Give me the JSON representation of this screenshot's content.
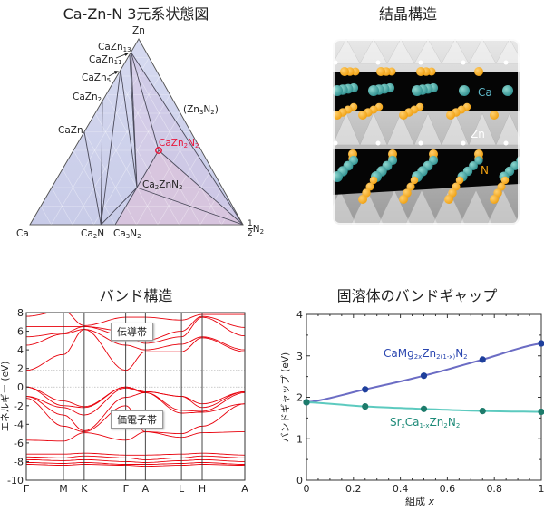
{
  "panels": {
    "phase_title": "Ca-Zn-N 3元系状態図",
    "crystal_title": "結晶構造",
    "band_title": "バンド構造",
    "gap_title": "固溶体のバンドギャップ"
  },
  "phase_diagram": {
    "corners": {
      "Ca": "Ca",
      "Zn": "Zn",
      "N": "N2",
      "N_prefix_num": "1",
      "N_prefix_den": "2"
    },
    "compounds": [
      {
        "id": "CaZn13",
        "parts": [
          [
            "CaZn",
            ""
          ],
          [
            "",
            "13"
          ]
        ],
        "comp": [
          1,
          13,
          0
        ],
        "highlight": false
      },
      {
        "id": "CaZn11",
        "parts": [
          [
            "CaZn",
            ""
          ],
          [
            "",
            "11"
          ]
        ],
        "comp": [
          1,
          11,
          0
        ],
        "highlight": false
      },
      {
        "id": "CaZn5",
        "parts": [
          [
            "CaZn",
            ""
          ],
          [
            "",
            "5"
          ]
        ],
        "comp": [
          1,
          5,
          0
        ],
        "highlight": false
      },
      {
        "id": "CaZn2",
        "parts": [
          [
            "CaZn",
            ""
          ],
          [
            "",
            "2"
          ]
        ],
        "comp": [
          1,
          2,
          0
        ],
        "highlight": false
      },
      {
        "id": "CaZn",
        "parts": [
          [
            "CaZn",
            ""
          ]
        ],
        "comp": [
          1,
          1,
          0
        ],
        "highlight": false
      },
      {
        "id": "Ca2N",
        "parts": [
          [
            "Ca",
            ""
          ],
          [
            "",
            "2"
          ],
          [
            "N",
            ""
          ]
        ],
        "comp": [
          2,
          0,
          1
        ],
        "highlight": false
      },
      {
        "id": "Ca3N2",
        "parts": [
          [
            "Ca",
            ""
          ],
          [
            "",
            "3"
          ],
          [
            "N",
            ""
          ],
          [
            "",
            "2"
          ]
        ],
        "comp": [
          3,
          0,
          2
        ],
        "highlight": false
      },
      {
        "id": "Ca2ZnN2",
        "parts": [
          [
            "Ca",
            ""
          ],
          [
            "",
            "2"
          ],
          [
            "ZnN",
            ""
          ],
          [
            "",
            "2"
          ]
        ],
        "comp": [
          2,
          1,
          2
        ],
        "highlight": false
      },
      {
        "id": "CaZn2N2",
        "parts": [
          [
            "CaZn",
            ""
          ],
          [
            "",
            "2"
          ],
          [
            "N",
            ""
          ],
          [
            "",
            "2"
          ]
        ],
        "comp": [
          1,
          2,
          2
        ],
        "highlight": true
      },
      {
        "id": "Zn3N2",
        "parts": [
          [
            "(Zn",
            ""
          ],
          [
            "",
            "3"
          ],
          [
            "N",
            ""
          ],
          [
            "",
            "2"
          ],
          [
            ")",
            ""
          ]
        ],
        "comp": [
          0,
          3,
          2
        ],
        "highlight": false
      }
    ],
    "tie_lines": [
      [
        "CaZn",
        "Ca2N"
      ],
      [
        "CaZn2",
        "Ca2N"
      ],
      [
        "CaZn5",
        "Ca2N"
      ],
      [
        "CaZn5",
        "Ca2ZnN2"
      ],
      [
        "CaZn11",
        "Ca2ZnN2"
      ],
      [
        "CaZn13",
        "Ca2ZnN2"
      ],
      [
        "CaZn13",
        "CaZn2N2"
      ],
      [
        "CaZn13",
        "N"
      ],
      [
        "Ca2N",
        "Ca2ZnN2"
      ],
      [
        "Ca3N2",
        "Ca2ZnN2"
      ],
      [
        "Ca2ZnN2",
        "CaZn2N2"
      ],
      [
        "Ca2ZnN2",
        "N"
      ],
      [
        "CaZn2N2",
        "N"
      ]
    ],
    "colors": {
      "fill": "#c8cbe8",
      "pink": "#d9c3dc",
      "highlight": "#e8173c"
    }
  },
  "crystal": {
    "labels": {
      "ca": "Ca",
      "zn": "Zn",
      "n": "N"
    },
    "colors": {
      "ca": "#2f8f8f",
      "n": "#f0a010",
      "zn": "#ffffff"
    }
  },
  "chart_data": [
    {
      "type": "line",
      "title": "バンド構造",
      "ylabel": "エネルギー (eV)",
      "ylim": [
        -10,
        8
      ],
      "yticks": [
        -10,
        -8,
        -6,
        -4,
        -2,
        0,
        2,
        4,
        6,
        8
      ],
      "kpoints": [
        "Γ",
        "M",
        "K",
        "Γ",
        "A",
        "L",
        "H",
        "A"
      ],
      "kpos": [
        0,
        0.17,
        0.265,
        0.455,
        0.545,
        0.71,
        0.805,
        1
      ],
      "reference_lines": [
        0,
        1.8
      ],
      "annotations": {
        "conduction": "伝導帯",
        "valence": "価電子帯"
      },
      "color": "#e8000b",
      "bands": [
        [
          1.8,
          3.5,
          6.2,
          1.8,
          3.8,
          3.8,
          5.3,
          3.8
        ],
        [
          4.5,
          5.7,
          6.2,
          4.5,
          4.0,
          4.6,
          5.4,
          4.0
        ],
        [
          5.4,
          5.8,
          6.5,
          5.5,
          4.7,
          5.4,
          7.5,
          5.5
        ],
        [
          6.5,
          6.5,
          6.5,
          6.0,
          5.0,
          6.0,
          7.6,
          6.4
        ],
        [
          7.6,
          8.2,
          6.6,
          7.5,
          7.5,
          7.2,
          7.8,
          7.8
        ],
        [
          0,
          -1.5,
          -2.1,
          0,
          -0.5,
          -1.0,
          -1.8,
          -0.5
        ],
        [
          0,
          -2.0,
          -2.2,
          0,
          -0.5,
          -1.0,
          -2.2,
          -0.5
        ],
        [
          -1.0,
          -2.2,
          -3.0,
          -0.1,
          -0.6,
          -2.5,
          -2.6,
          -0.6
        ],
        [
          -1.0,
          -3.0,
          -4.7,
          -1.1,
          -0.6,
          -2.8,
          -2.7,
          -1.8
        ],
        [
          -1.2,
          -4.2,
          -4.8,
          -2.0,
          -4.8,
          -5.0,
          -4.2,
          -1.8
        ],
        [
          -5.7,
          -5.8,
          -4.9,
          -5.7,
          -4.8,
          -5.4,
          -4.9,
          -4.8
        ],
        [
          -7.2,
          -7.2,
          -7.1,
          -7.3,
          -7.3,
          -7.2,
          -7.1,
          -7.3
        ],
        [
          -7.5,
          -7.6,
          -7.4,
          -7.6,
          -7.8,
          -7.6,
          -7.4,
          -7.6
        ],
        [
          -7.8,
          -7.9,
          -7.8,
          -8.0,
          -8.1,
          -7.9,
          -7.8,
          -8.0
        ],
        [
          -8.1,
          -8.2,
          -8.1,
          -8.3,
          -8.3,
          -8.2,
          -8.1,
          -8.3
        ],
        [
          -8.3,
          -8.4,
          -8.3,
          -8.4,
          -8.5,
          -8.4,
          -8.3,
          -8.4
        ]
      ]
    },
    {
      "type": "line",
      "title": "固溶体のバンドギャップ",
      "xlabel": "組成",
      "xlabel_var": "x",
      "ylabel": "バンドギャップ (eV)",
      "xlim": [
        0,
        1
      ],
      "ylim": [
        0,
        4
      ],
      "xticks": [
        "0",
        "0.2",
        "0.4",
        "0.6",
        "0.8",
        "1"
      ],
      "yticks": [
        "0",
        "1",
        "2",
        "3",
        "4"
      ],
      "x": [
        0,
        0.25,
        0.5,
        0.75,
        1
      ],
      "series": [
        {
          "name": "CaMg2xZn2(1-x)N2",
          "parts": [
            [
              "CaMg",
              ""
            ],
            [
              "",
              "2x"
            ],
            [
              "Zn",
              ""
            ],
            [
              "",
              "2(1-x)"
            ],
            [
              "N",
              ""
            ],
            [
              "",
              "2"
            ]
          ],
          "values": [
            1.88,
            2.19,
            2.52,
            2.91,
            3.3
          ],
          "line_color": "#6b6cc4",
          "marker_color": "#1e3f9c"
        },
        {
          "name": "SrxCa1-xZn2N2",
          "parts": [
            [
              "Sr",
              ""
            ],
            [
              "",
              "x"
            ],
            [
              "Ca",
              ""
            ],
            [
              "",
              "1-x"
            ],
            [
              "Zn",
              ""
            ],
            [
              "",
              "2"
            ],
            [
              "N",
              ""
            ],
            [
              "",
              "2"
            ]
          ],
          "values": [
            1.88,
            1.78,
            1.72,
            1.67,
            1.65
          ],
          "line_color": "#5ccabf",
          "marker_color": "#1d7b6b"
        }
      ]
    }
  ]
}
